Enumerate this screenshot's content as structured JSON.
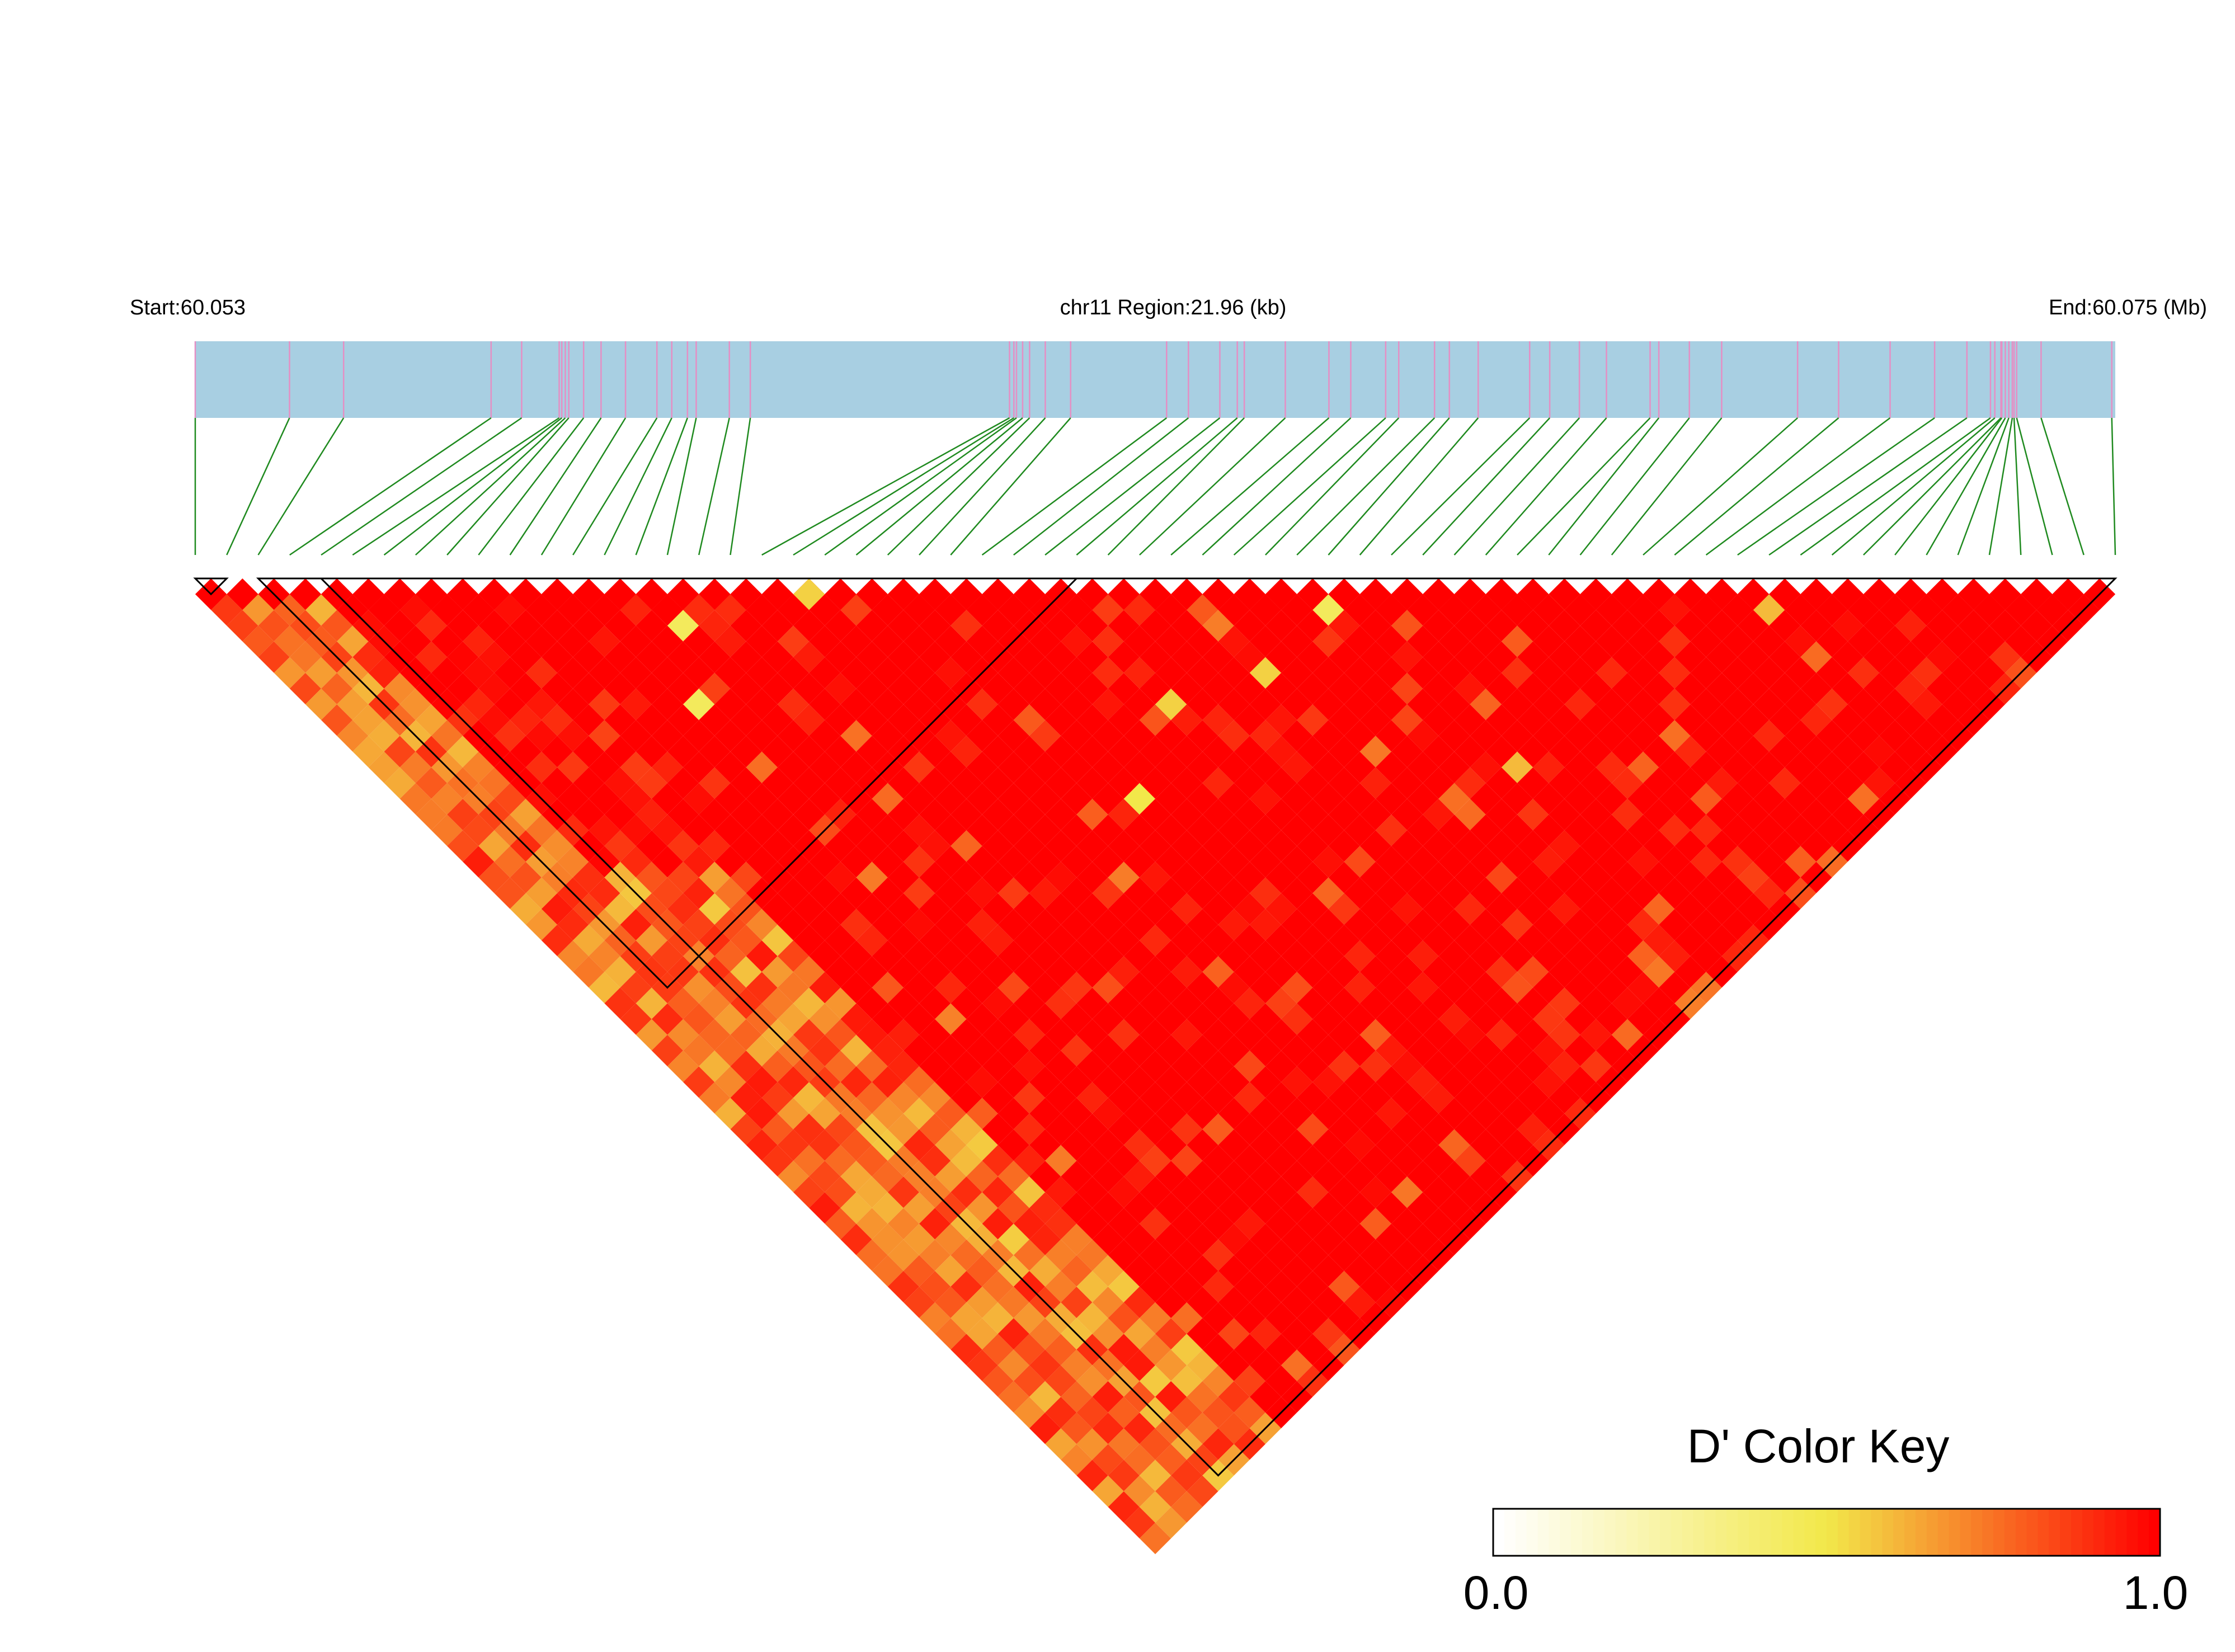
{
  "chart_data": {
    "type": "heatmap",
    "variant": "linkage-disequilibrium-triangle",
    "header": {
      "start_label": "Start:60.053",
      "region_label": "chr11 Region:21.96 (kb)",
      "end_label": "End:60.075 (Mb)"
    },
    "region": {
      "chromosome": "chr11",
      "start_mb": 60.053,
      "end_mb": 60.075,
      "length_kb": 21.96
    },
    "snp_count": 62,
    "snp_positions_mb": [
      60.053,
      60.05408,
      60.0547,
      60.05639,
      60.05674,
      60.05717,
      60.0572,
      60.05724,
      60.05728,
      60.05745,
      60.05765,
      60.05793,
      60.05829,
      60.05846,
      60.05864,
      60.05874,
      60.05912,
      60.05936,
      60.06233,
      60.06238,
      60.06241,
      60.06248,
      60.06256,
      60.06274,
      60.06303,
      60.06413,
      60.06438,
      60.06474,
      60.06494,
      60.06502,
      60.06549,
      60.06599,
      60.06624,
      60.06664,
      60.06679,
      60.0672,
      60.06737,
      60.0677,
      60.06829,
      60.06852,
      60.06886,
      60.06917,
      60.06967,
      60.06977,
      60.07012,
      60.07049,
      60.07136,
      60.07183,
      60.07242,
      60.07293,
      60.0733,
      60.07357,
      60.07362,
      60.07369,
      60.0737,
      60.07374,
      60.07378,
      60.07382,
      60.07384,
      60.07387,
      60.07415,
      60.07496
    ],
    "haplotype_blocks": [
      {
        "first_snp": 1,
        "last_snp": 2
      },
      {
        "first_snp": 3,
        "last_snp": 29
      },
      {
        "first_snp": 5,
        "last_snp": 62
      }
    ],
    "legend": {
      "title": "D' Color Key",
      "min_label": "0.0",
      "max_label": "1.0",
      "min": 0.0,
      "max": 1.0
    },
    "colors": {
      "track_fill": "#a8cfe2",
      "snp_tick": "#e58fc4",
      "connector": "#1f8a1f",
      "low": "#ffffff",
      "mid": "#f2e84a",
      "high": "#ff0000"
    },
    "dprime_notable_low_pairs": [
      {
        "i": 28,
        "j": 36,
        "d": 0.55
      },
      {
        "i": 36,
        "j": 38,
        "d": 0.45
      },
      {
        "i": 24,
        "j": 38,
        "d": 0.5
      },
      {
        "i": 37,
        "j": 49,
        "d": 0.6
      },
      {
        "i": 32,
        "j": 38,
        "d": 0.55
      },
      {
        "i": 50,
        "j": 52,
        "d": 0.6
      },
      {
        "i": 44,
        "j": 45,
        "d": 0.6
      },
      {
        "i": 15,
        "j": 18,
        "d": 0.45
      },
      {
        "i": 13,
        "j": 21,
        "d": 0.45
      }
    ]
  }
}
